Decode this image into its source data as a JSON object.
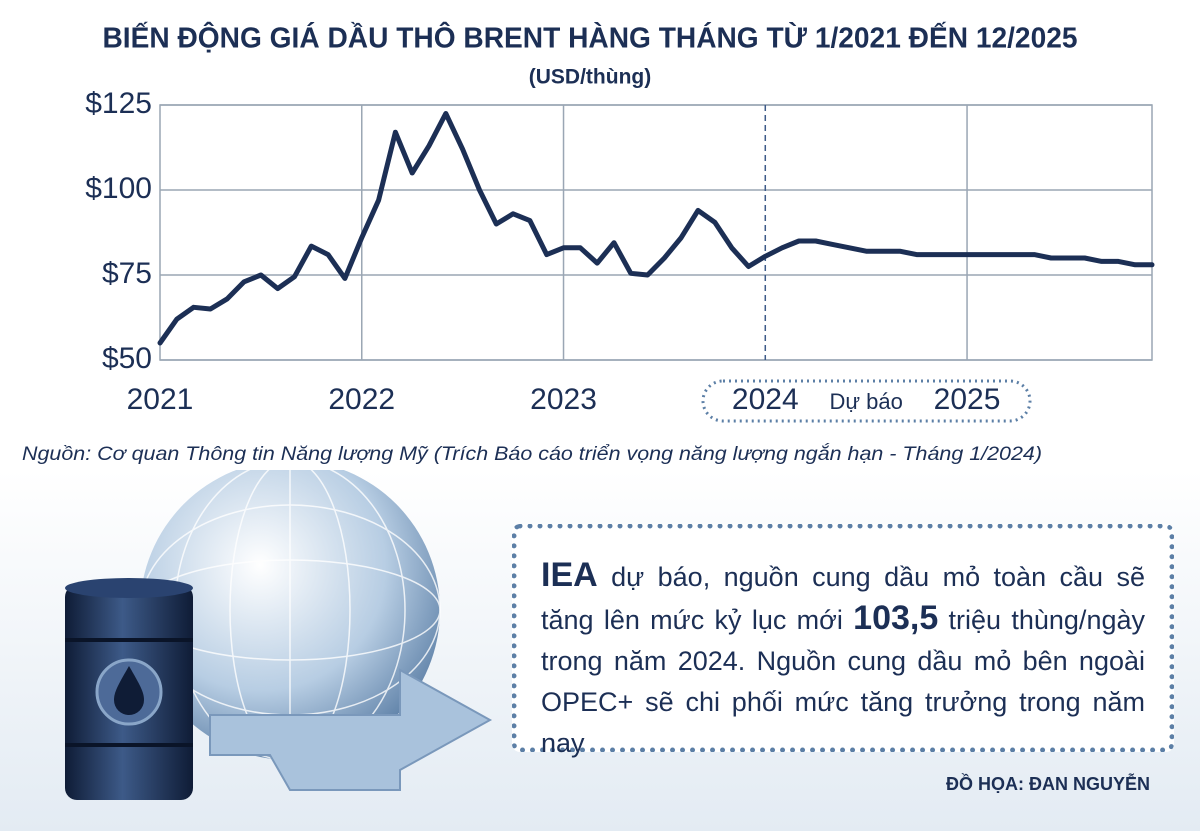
{
  "chart_data": {
    "type": "line",
    "title": "BIẾN ĐỘNG GIÁ DẦU THÔ BRENT HÀNG THÁNG TỪ 1/2021 ĐẾN 12/2025",
    "subtitle": "(USD/thùng)",
    "categories": [
      "2021",
      null,
      null,
      null,
      null,
      null,
      null,
      null,
      null,
      null,
      null,
      null,
      "2022",
      null,
      null,
      null,
      null,
      null,
      null,
      null,
      null,
      null,
      null,
      null,
      "2023",
      null,
      null,
      null,
      null,
      null,
      null,
      null,
      null,
      null,
      null,
      null,
      "2024",
      null,
      null,
      null,
      null,
      null,
      null,
      null,
      null,
      null,
      null,
      null,
      "2025",
      null,
      null,
      null,
      null,
      null,
      null,
      null,
      null,
      null,
      null,
      null
    ],
    "values": [
      55,
      62,
      65.5,
      65,
      68,
      73,
      75,
      71,
      74.5,
      83.5,
      81,
      74,
      86,
      97,
      117,
      105,
      113,
      122.5,
      112,
      100,
      90,
      93,
      91,
      81,
      83,
      83,
      78.5,
      84.5,
      75.5,
      75,
      80,
      86,
      94,
      90.5,
      83,
      77.5,
      80.5,
      83,
      85,
      85,
      84,
      83,
      82,
      82,
      82,
      81,
      81,
      81,
      81,
      81,
      81,
      81,
      81,
      80,
      80,
      80,
      79,
      79,
      78,
      78
    ],
    "color": "#1c2f55",
    "ylim": [
      50,
      125
    ],
    "yticks": [
      {
        "value": 50,
        "label": "$50"
      },
      {
        "value": 75,
        "label": "$75"
      },
      {
        "value": 100,
        "label": "$100"
      },
      {
        "value": 125,
        "label": "$125"
      }
    ],
    "grid": true,
    "forecast": {
      "label": "Dự báo",
      "from": "2024"
    },
    "source": "Nguồn: Cơ quan Thông tin Năng lượng Mỹ (Trích Báo cáo triển vọng năng lượng ngắn hạn - Tháng 1/2024)"
  },
  "callout": {
    "parts": [
      "IEA",
      " dự báo, nguồn cung dầu mỏ toàn cầu sẽ tăng lên mức kỷ lục mới ",
      "103,5",
      " triệu thùng/ngày trong năm 2024. Nguồn cung dầu mỏ bên ngoài OPEC+ sẽ chi phối mức tăng trưởng trong năm nay"
    ]
  },
  "credit": "ĐỒ HỌA: ĐAN NGUYỄN"
}
